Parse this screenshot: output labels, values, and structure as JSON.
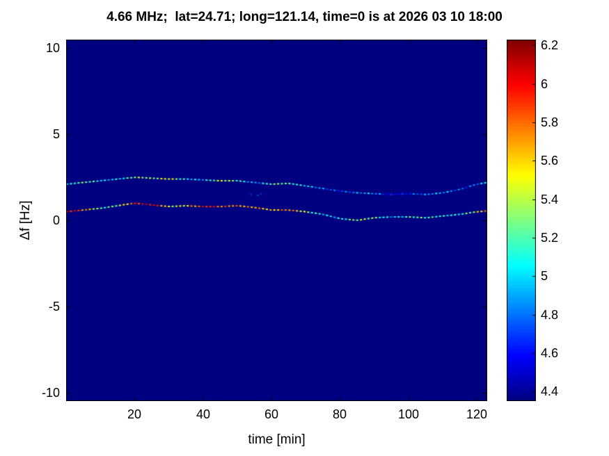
{
  "title": "4.66 MHz;  lat=24.71; long=121.14, time=0 is at 2026 03 10 18:00",
  "axes": {
    "xlabel": "time [min]",
    "ylabel": "Δf [Hz]"
  },
  "chart_data": {
    "type": "heatmap",
    "title": "4.66 MHz;  lat=24.71; long=121.14, time=0 is at 2026 03 10 18:00",
    "xlabel": "time [min]",
    "ylabel": "Δf [Hz]",
    "xlim": [
      0,
      123
    ],
    "ylim": [
      -10.5,
      10.5
    ],
    "x_ticks": [
      20,
      40,
      60,
      80,
      100,
      120
    ],
    "x_tick_labels": [
      "20",
      "40",
      "60",
      "80",
      "100",
      "120"
    ],
    "y_ticks": [
      10,
      5,
      0,
      -5,
      -10
    ],
    "y_tick_labels": [
      "10",
      "5",
      "0",
      "-5",
      "-10"
    ],
    "colormap": "jet",
    "background_value": 4.35,
    "color_range": [
      4.35,
      6.23
    ],
    "colorbar_ticks": [
      6.2,
      6.0,
      5.8,
      5.6,
      5.4,
      5.2,
      5.0,
      4.8,
      4.6,
      4.4
    ],
    "colorbar_tick_labels": [
      "6.2",
      "6",
      "5.8",
      "5.6",
      "5.4",
      "5.2",
      "5",
      "4.8",
      "4.6",
      "4.4"
    ],
    "series": [
      {
        "name": "upper-doppler-trace",
        "style": "dashed",
        "t": [
          0,
          5,
          10,
          15,
          20,
          25,
          30,
          35,
          40,
          45,
          50,
          55,
          60,
          65,
          70,
          75,
          80,
          85,
          90,
          95,
          100,
          105,
          110,
          115,
          120,
          123
        ],
        "f": [
          2.1,
          2.2,
          2.3,
          2.4,
          2.5,
          2.45,
          2.4,
          2.4,
          2.35,
          2.3,
          2.3,
          2.2,
          2.1,
          2.15,
          2.0,
          1.85,
          1.7,
          1.6,
          1.55,
          1.5,
          1.55,
          1.5,
          1.6,
          1.8,
          2.1,
          2.2
        ],
        "value": [
          5.0,
          5.1,
          5.0,
          5.2,
          5.4,
          5.1,
          5.5,
          5.2,
          5.0,
          5.3,
          5.1,
          5.0,
          5.4,
          5.0,
          4.9,
          5.0,
          4.8,
          4.7,
          4.8,
          4.7,
          4.8,
          4.7,
          4.8,
          4.9,
          5.0,
          5.1
        ]
      },
      {
        "name": "lower-doppler-trace",
        "style": "dashed",
        "t": [
          0,
          5,
          10,
          15,
          20,
          25,
          30,
          35,
          40,
          45,
          50,
          55,
          60,
          65,
          70,
          75,
          80,
          85,
          90,
          95,
          100,
          105,
          110,
          115,
          120,
          123
        ],
        "f": [
          0.5,
          0.6,
          0.7,
          0.85,
          1.0,
          0.9,
          0.8,
          0.85,
          0.8,
          0.8,
          0.85,
          0.75,
          0.6,
          0.6,
          0.5,
          0.35,
          0.1,
          0.0,
          0.15,
          0.2,
          0.2,
          0.15,
          0.25,
          0.35,
          0.5,
          0.55
        ],
        "value": [
          5.9,
          5.6,
          5.3,
          5.5,
          5.8,
          5.9,
          5.5,
          5.7,
          5.9,
          5.6,
          5.8,
          5.9,
          5.5,
          5.6,
          5.4,
          5.2,
          5.0,
          5.2,
          5.3,
          5.1,
          5.2,
          5.0,
          5.1,
          5.3,
          5.5,
          5.8
        ]
      },
      {
        "name": "speckle-dots",
        "style": "dots",
        "t": [
          54,
          56,
          57
        ],
        "f": [
          1.5,
          1.45,
          1.55
        ],
        "value": [
          4.7,
          4.75,
          4.7
        ]
      }
    ]
  },
  "colors": {
    "figure_background": "#ffffff",
    "plot_background": "#000080",
    "axis": "#000000"
  }
}
